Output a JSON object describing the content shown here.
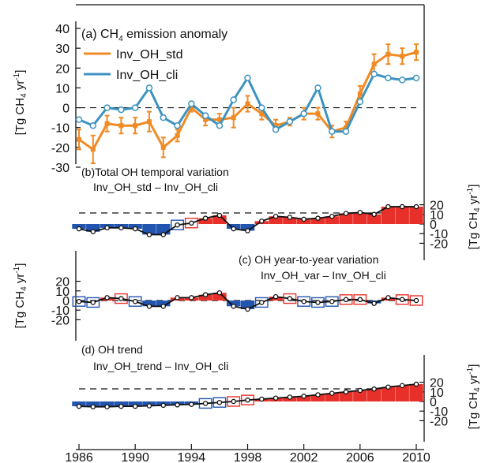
{
  "colors": {
    "std": "#f08a24",
    "cli": "#3d93c0",
    "pos": "#e8302a",
    "neg": "#2255b0",
    "line": "#111111"
  },
  "x_ticks": [
    "1986",
    "1990",
    "1994",
    "1998",
    "2002",
    "2006",
    "2010"
  ],
  "chart_data": [
    {
      "type": "line",
      "panel": "a",
      "title_prefix": "(a) CH",
      "title_sub": "4",
      "title_suffix": " emission anomaly",
      "ylabel": "[Tg CH4 yr-1]",
      "ylim": [
        -30,
        40
      ],
      "y_ticks": [
        "40",
        "30",
        "20",
        "10",
        "0",
        "-10",
        "-20",
        "-30"
      ],
      "x": [
        1986,
        1987,
        1988,
        1989,
        1990,
        1991,
        1992,
        1993,
        1994,
        1995,
        1996,
        1997,
        1998,
        1999,
        2000,
        2001,
        2002,
        2003,
        2004,
        2005,
        2006,
        2007,
        2008,
        2009,
        2010
      ],
      "series": [
        {
          "name": "Inv_OH_std",
          "values": [
            -16,
            -21,
            -8,
            -9,
            -9,
            -7,
            -20,
            -14,
            0,
            -6,
            -6,
            -5,
            2,
            -3,
            -9,
            -7,
            -3,
            -3,
            -12,
            -10,
            7,
            22,
            27,
            26,
            28
          ],
          "errors": [
            5,
            7,
            4,
            4,
            4,
            5,
            5,
            3,
            2,
            3,
            3,
            5,
            4,
            3,
            3,
            2,
            3,
            3,
            3,
            3,
            4,
            5,
            5,
            4,
            4
          ]
        },
        {
          "name": "Inv_OH_cli",
          "values": [
            -6,
            -9,
            0,
            -1,
            0,
            10,
            -5,
            -9,
            2,
            -4,
            -9,
            4,
            15,
            0,
            -11,
            -7,
            -3,
            10,
            -12,
            -12,
            3,
            17,
            15,
            14,
            15
          ]
        }
      ]
    },
    {
      "type": "bar",
      "panel": "b",
      "title": "(b)Total OH temporal variation",
      "subtitle": "Inv_OH_std – Inv_OH_cli",
      "ylim": [
        -20,
        20
      ],
      "y_ticks": [
        "20",
        "10",
        "0",
        "-10",
        "-20"
      ],
      "ylabel": "[Tg CH4 yr-1]",
      "x": [
        1986,
        1987,
        1988,
        1989,
        1990,
        1991,
        1992,
        1993,
        1994,
        1995,
        1996,
        1997,
        1998,
        1999,
        2000,
        2001,
        2002,
        2003,
        2004,
        2005,
        2006,
        2007,
        2008,
        2009,
        2010
      ],
      "values": [
        -5,
        -8,
        -4,
        -4,
        -5,
        -11,
        -11,
        -1,
        1,
        6,
        9,
        -5,
        -7,
        3,
        8,
        7,
        5,
        6,
        8,
        11,
        12,
        10,
        18,
        18,
        18
      ]
    },
    {
      "type": "bar",
      "panel": "c",
      "title": "(c) OH year-to-year variation",
      "subtitle": "Inv_OH_var – Inv_OH_cli",
      "ylim": [
        -20,
        20
      ],
      "y_ticks": [
        "20",
        "10",
        "0",
        "-10",
        "-20"
      ],
      "ylabel": "[Tg CH4 yr-1]",
      "x": [
        1986,
        1987,
        1988,
        1989,
        1990,
        1991,
        1992,
        1993,
        1994,
        1995,
        1996,
        1997,
        1998,
        1999,
        2000,
        2001,
        2002,
        2003,
        2004,
        2005,
        2006,
        2007,
        2008,
        2009,
        2010
      ],
      "values": [
        -1,
        -2,
        3,
        2,
        -1,
        -6,
        -6,
        3,
        3,
        6,
        8,
        -6,
        -9,
        -2,
        4,
        2,
        -1,
        -2,
        -1,
        1,
        1,
        -3,
        3,
        1,
        0
      ]
    },
    {
      "type": "bar",
      "panel": "d",
      "title": "(d) OH trend",
      "subtitle": "Inv_OH_trend – Inv_OH_cli",
      "ylim": [
        -20,
        20
      ],
      "y_ticks": [
        "20",
        "10",
        "0",
        "-10",
        "-20"
      ],
      "ylabel": "[Tg CH4 yr-1]",
      "x": [
        1986,
        1987,
        1988,
        1989,
        1990,
        1991,
        1992,
        1993,
        1994,
        1995,
        1996,
        1997,
        1998,
        1999,
        2000,
        2001,
        2002,
        2003,
        2004,
        2005,
        2006,
        2007,
        2008,
        2009,
        2010
      ],
      "values": [
        -5,
        -5.5,
        -5.5,
        -5,
        -5,
        -4.5,
        -4,
        -3.5,
        -3,
        -2,
        -1,
        0,
        1.5,
        2.5,
        3.5,
        4.5,
        5.5,
        7,
        8.5,
        10,
        11.5,
        13,
        15,
        16.5,
        18
      ]
    }
  ]
}
